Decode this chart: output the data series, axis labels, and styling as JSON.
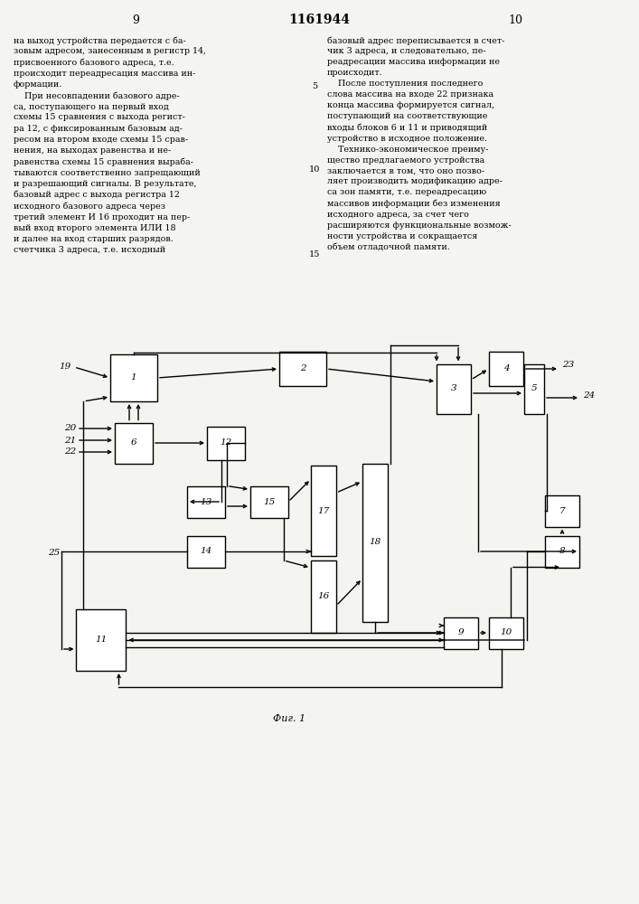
{
  "title": "1161944",
  "page_left": "9",
  "page_right": "10",
  "fig_label": "Фиг. 1",
  "background_color": "#f5f5f0",
  "left_text": [
    "на выход устройства передается с ба-",
    "зовым адресом, занесенным в регистр 14,",
    "присвоенного базового адреса, т.е.",
    "происходит переадресация массива ин-",
    "формации.",
    "    При несовпадении базового адре-",
    "са, поступающего на первый вход",
    "схемы 15 сравнения с выхода регист-",
    "ра 12, с фиксированным базовым ад-",
    "ресом на втором входе схемы 15 срав-",
    "нения, на выходах равенства и не-",
    "равенства схемы 15 сравнения выраба-",
    "тываются соответственно запрещающий",
    "и разрешающий сигналы. В результате,",
    "базовый адрес с выхода регистра 12",
    "исходного базового адреса через",
    "третий элемент И 16 проходит на пер-",
    "вый вход второго элемента ИЛИ 18",
    "и далее на вход старших разрядов.",
    "счетчика 3 адреса, т.е. исходный"
  ],
  "right_text": [
    "базовый адрес переписывается в счет-",
    "чик 3 адреса, и следовательно, пе-",
    "реадресации массива информации не",
    "происходит.",
    "    После поступления последнего",
    "слова массива на входе 22 признака",
    "конца массива формируется сигнал,",
    "поступающий на соответствующие",
    "входы блоков 6 и 11 и приводящий",
    "устройство в исходное положение.",
    "    Технико-экономическое преиму-",
    "щество предлагаемого устройства",
    "заключается в том, что оно позво-",
    "ляет производить модификацию адре-",
    "са зон памяти, т.е. переадресацию",
    "массивов информации без изменения",
    "исходного адреса, за счет чего",
    "расширяются функциональные возмож-",
    "ности устройства и сокращается",
    "объем отладочной памяти."
  ]
}
